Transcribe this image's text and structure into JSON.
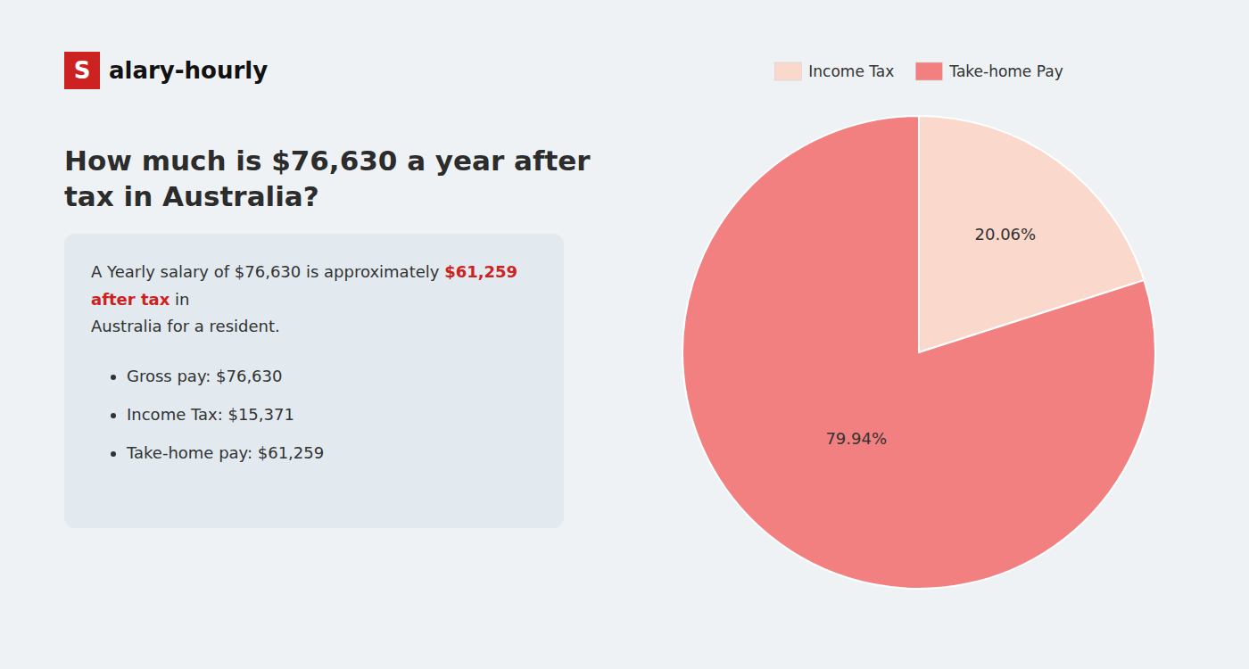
{
  "chart_data": {
    "type": "pie",
    "title": "How much is $76,630 a year after tax in Australia?",
    "categories": [
      "Income Tax",
      "Take-home Pay"
    ],
    "values": [
      20.06,
      79.94
    ],
    "value_labels": [
      "20.06%",
      "79.94%"
    ],
    "colors": [
      "#fad8cc",
      "#f28080"
    ],
    "data_labels": true,
    "legend": "top",
    "annotations": [
      {
        "text": "S",
        "color": "#cc2222"
      },
      {
        "text": "alary-hourly"
      },
      {
        "text": "A Yearly salary of $76,630 is approximately "
      },
      {
        "text": "$61,259 after tax",
        "color": "#cc2222"
      },
      {
        "text": " in"
      },
      {
        "text": "Australia for a resident."
      },
      {
        "text": "Gross pay: $76,630"
      },
      {
        "text": "Income Tax: $15,371"
      },
      {
        "text": "Take-home pay: $61,259"
      }
    ]
  }
}
